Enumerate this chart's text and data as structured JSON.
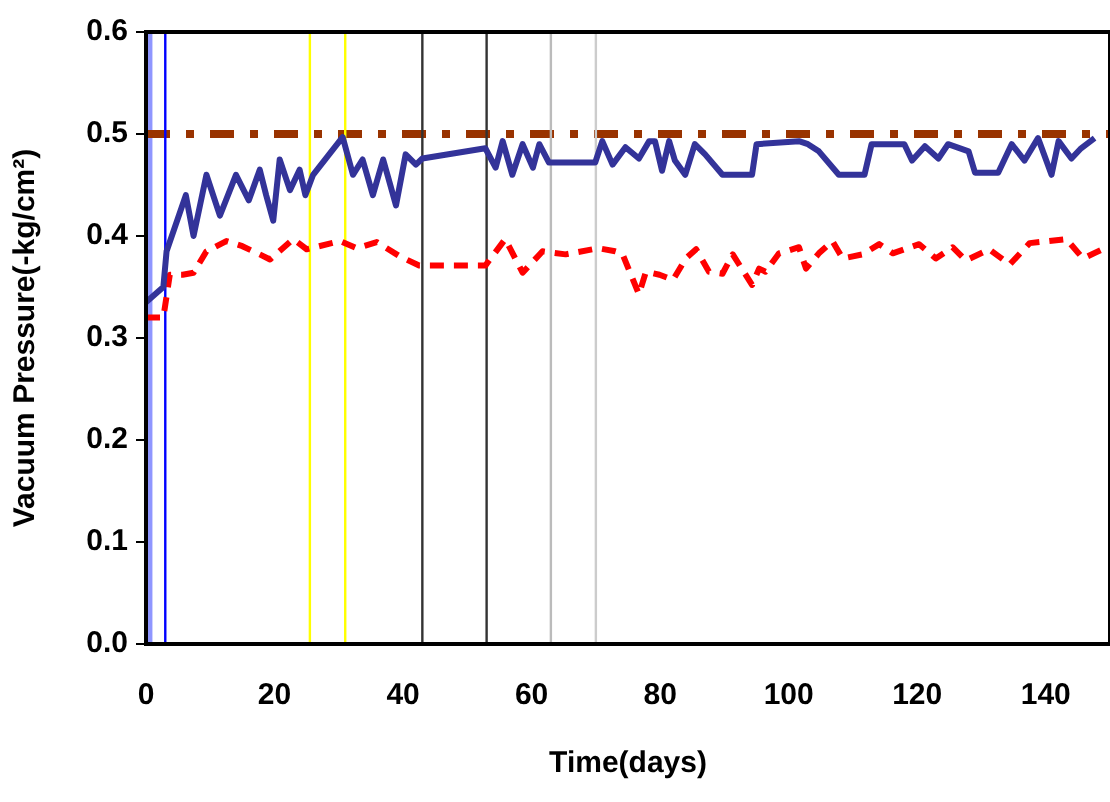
{
  "chart_data": {
    "type": "line",
    "xlabel": "Time(days)",
    "ylabel": "Vacuum Pressure(-kg/cm²)",
    "xlim": [
      0,
      150
    ],
    "xticks": [
      0,
      20,
      40,
      60,
      80,
      100,
      120,
      140
    ],
    "ylim": [
      0,
      0.6
    ],
    "yticks": [
      {
        "value": 0,
        "label": "0.0"
      },
      0.1,
      0.2,
      0.3,
      0.4,
      0.5,
      0.6
    ],
    "grid": false,
    "legend": false,
    "marker": "none",
    "series": [
      {
        "color": "#333399",
        "line_style": "solid",
        "x": [
          0,
          2.7,
          3.2,
          6.2,
          7.4,
          9.4,
          11.5,
          14,
          16,
          17.7,
          18.7,
          19.8,
          20.8,
          22.4,
          23.9,
          24.8,
          26,
          30.6,
          32.2,
          33.7,
          35.3,
          36.9,
          38.9,
          40.4,
          42,
          43,
          52.8,
          54.4,
          55.5,
          57,
          58.6,
          60.2,
          61.2,
          62.7,
          69.9,
          71,
          72.6,
          74.6,
          76.7,
          78.3,
          79.2,
          80.3,
          81.4,
          82.3,
          83.9,
          85.4,
          87,
          89.7,
          94.3,
          95,
          101.6,
          103,
          104.7,
          107.8,
          111.8,
          112.9,
          118,
          119.2,
          121.2,
          123.3,
          124.8,
          128,
          129,
          132.6,
          134.7,
          136.7,
          138.8,
          140.9,
          142,
          144,
          145.5,
          147.6
        ],
        "values": [
          0.335,
          0.35,
          0.385,
          0.44,
          0.4,
          0.46,
          0.42,
          0.46,
          0.435,
          0.465,
          0.44,
          0.415,
          0.475,
          0.445,
          0.465,
          0.44,
          0.46,
          0.497,
          0.46,
          0.475,
          0.44,
          0.475,
          0.43,
          0.48,
          0.47,
          0.476,
          0.486,
          0.467,
          0.493,
          0.46,
          0.49,
          0.467,
          0.49,
          0.472,
          0.472,
          0.493,
          0.47,
          0.487,
          0.476,
          0.493,
          0.493,
          0.464,
          0.493,
          0.474,
          0.46,
          0.49,
          0.48,
          0.46,
          0.46,
          0.49,
          0.493,
          0.49,
          0.483,
          0.46,
          0.46,
          0.49,
          0.49,
          0.474,
          0.488,
          0.476,
          0.49,
          0.483,
          0.462,
          0.462,
          0.49,
          0.474,
          0.496,
          0.46,
          0.493,
          0.476,
          0.486,
          0.496
        ]
      },
      {
        "color": "#ff0000",
        "line_style": "dashed",
        "x": [
          0,
          2.7,
          3.7,
          5.7,
          7.4,
          9.4,
          12.5,
          15,
          17.7,
          19.3,
          22.9,
          25,
          30.2,
          32.8,
          35.9,
          39.5,
          42.5,
          52.8,
          55.9,
          58.6,
          61.7,
          65.3,
          70.4,
          73,
          74.1,
          76.7,
          77.8,
          79.9,
          82,
          84,
          85.6,
          87.6,
          89.7,
          91.3,
          94.3,
          95.4,
          96.4,
          98.5,
          101.6,
          102.7,
          104.7,
          106.8,
          108.4,
          111.5,
          114.1,
          116.2,
          120.3,
          122.9,
          125.5,
          127.6,
          131.2,
          134.4,
          137.5,
          143.2,
          145.8,
          149.5
        ],
        "values": [
          0.32,
          0.32,
          0.362,
          0.362,
          0.364,
          0.385,
          0.395,
          0.39,
          0.382,
          0.377,
          0.397,
          0.387,
          0.395,
          0.388,
          0.394,
          0.38,
          0.371,
          0.371,
          0.397,
          0.364,
          0.385,
          0.382,
          0.388,
          0.385,
          0.383,
          0.343,
          0.365,
          0.362,
          0.357,
          0.378,
          0.387,
          0.365,
          0.363,
          0.382,
          0.352,
          0.368,
          0.365,
          0.383,
          0.389,
          0.368,
          0.383,
          0.395,
          0.378,
          0.382,
          0.392,
          0.383,
          0.392,
          0.378,
          0.389,
          0.376,
          0.387,
          0.372,
          0.393,
          0.397,
          0.378,
          0.389
        ]
      }
    ],
    "ref_lines": [
      {
        "axis": "y",
        "value": 0.5,
        "color": "#993300",
        "line_style": "dashdot"
      },
      {
        "axis": "x",
        "value": 3,
        "color": "#0000ff",
        "line_style": "solid"
      },
      {
        "axis": "x",
        "value": 25.5,
        "color": "#ffff00",
        "line_style": "solid"
      },
      {
        "axis": "x",
        "value": 31,
        "color": "#ffff00",
        "line_style": "solid"
      },
      {
        "axis": "x",
        "value": 43,
        "color": "#333333",
        "line_style": "solid"
      },
      {
        "axis": "x",
        "value": 53,
        "color": "#333333",
        "line_style": "solid"
      },
      {
        "axis": "x",
        "value": 63,
        "color": "#bbbbbb",
        "line_style": "solid"
      },
      {
        "axis": "x",
        "value": 70,
        "color": "#cccccc",
        "line_style": "solid"
      }
    ],
    "bands": [
      {
        "axis": "x",
        "from": 0,
        "to": 1,
        "color": "#8f96ff"
      }
    ]
  }
}
